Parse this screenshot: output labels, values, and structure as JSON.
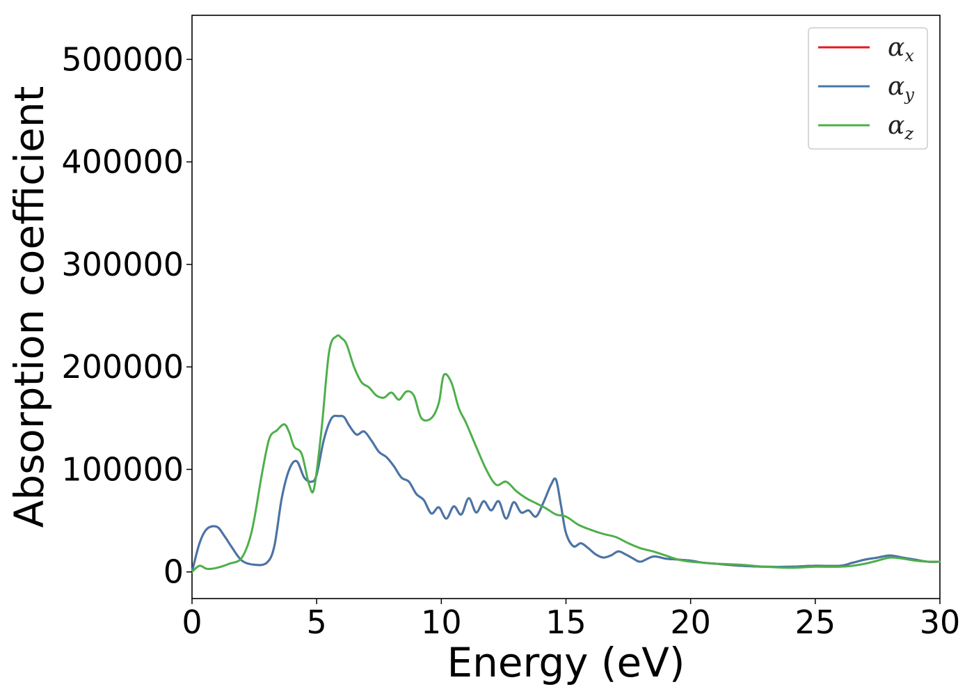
{
  "chart_data": {
    "type": "line",
    "title": "",
    "xlabel": "Energy (eV)",
    "ylabel": "Absorption coefficient",
    "xlim": [
      0,
      30
    ],
    "ylim": [
      -26000,
      543000
    ],
    "xticks": [
      0,
      5,
      10,
      15,
      20,
      25,
      30
    ],
    "yticks": [
      0,
      100000,
      200000,
      300000,
      400000,
      500000
    ],
    "grid": false,
    "legend_position": "top-right",
    "series": [
      {
        "name": "αx",
        "legend_symbol": "α",
        "legend_subscript": "x",
        "color": "#e41a1c",
        "x": [
          0,
          0.3,
          0.6,
          1.0,
          1.3,
          1.6,
          2.0,
          2.5,
          3.0,
          3.3,
          3.6,
          3.9,
          4.2,
          4.5,
          4.8,
          5.0,
          5.3,
          5.6,
          5.9,
          6.1,
          6.3,
          6.6,
          6.9,
          7.2,
          7.5,
          7.8,
          8.1,
          8.4,
          8.7,
          9.0,
          9.3,
          9.6,
          9.9,
          10.2,
          10.5,
          10.8,
          11.1,
          11.4,
          11.7,
          12.0,
          12.3,
          12.6,
          12.9,
          13.2,
          13.5,
          13.8,
          14.1,
          14.4,
          14.6,
          14.8,
          15.0,
          15.3,
          15.6,
          15.9,
          16.2,
          16.5,
          16.8,
          17.1,
          17.4,
          17.7,
          18.0,
          18.5,
          19.0,
          19.5,
          20.0,
          20.5,
          21.0,
          22.0,
          23.0,
          24.0,
          25.0,
          26.0,
          26.5,
          27.0,
          27.5,
          28.0,
          28.5,
          29.0,
          29.5,
          30.0
        ],
        "y": [
          0,
          28000,
          42000,
          44000,
          35000,
          24000,
          11000,
          7000,
          9000,
          25000,
          72000,
          100000,
          108000,
          92000,
          88000,
          95000,
          130000,
          150000,
          152000,
          151000,
          143000,
          134000,
          137000,
          128000,
          117000,
          112000,
          103000,
          92000,
          88000,
          76000,
          70000,
          57000,
          63000,
          52000,
          64000,
          56000,
          72000,
          58000,
          69000,
          60000,
          69000,
          52000,
          68000,
          58000,
          60000,
          54000,
          68000,
          85000,
          90000,
          65000,
          38000,
          25000,
          28000,
          23000,
          17000,
          14000,
          16000,
          20000,
          17000,
          13000,
          10000,
          15000,
          13000,
          12000,
          11000,
          9000,
          8000,
          6000,
          5000,
          5000,
          6000,
          6000,
          9000,
          12000,
          14000,
          16000,
          14000,
          12000,
          10000,
          10000
        ]
      },
      {
        "name": "αy",
        "legend_symbol": "α",
        "legend_subscript": "y",
        "color": "#4477aa",
        "x": [
          0,
          0.3,
          0.6,
          1.0,
          1.3,
          1.6,
          2.0,
          2.5,
          3.0,
          3.3,
          3.6,
          3.9,
          4.2,
          4.5,
          4.8,
          5.0,
          5.3,
          5.6,
          5.9,
          6.1,
          6.3,
          6.6,
          6.9,
          7.2,
          7.5,
          7.8,
          8.1,
          8.4,
          8.7,
          9.0,
          9.3,
          9.6,
          9.9,
          10.2,
          10.5,
          10.8,
          11.1,
          11.4,
          11.7,
          12.0,
          12.3,
          12.6,
          12.9,
          13.2,
          13.5,
          13.8,
          14.1,
          14.4,
          14.6,
          14.8,
          15.0,
          15.3,
          15.6,
          15.9,
          16.2,
          16.5,
          16.8,
          17.1,
          17.4,
          17.7,
          18.0,
          18.5,
          19.0,
          19.5,
          20.0,
          20.5,
          21.0,
          22.0,
          23.0,
          24.0,
          25.0,
          26.0,
          26.5,
          27.0,
          27.5,
          28.0,
          28.5,
          29.0,
          29.5,
          30.0
        ],
        "y": [
          0,
          28000,
          42000,
          44000,
          35000,
          24000,
          11000,
          7000,
          9000,
          25000,
          72000,
          100000,
          108000,
          92000,
          88000,
          95000,
          130000,
          150000,
          152000,
          151000,
          143000,
          134000,
          137000,
          128000,
          117000,
          112000,
          103000,
          92000,
          88000,
          76000,
          70000,
          57000,
          63000,
          52000,
          64000,
          56000,
          72000,
          58000,
          69000,
          60000,
          69000,
          52000,
          68000,
          58000,
          60000,
          54000,
          68000,
          85000,
          90000,
          65000,
          38000,
          25000,
          28000,
          23000,
          17000,
          14000,
          16000,
          20000,
          17000,
          13000,
          10000,
          15000,
          13000,
          12000,
          11000,
          9000,
          8000,
          6000,
          5000,
          5000,
          6000,
          6000,
          9000,
          12000,
          14000,
          16000,
          14000,
          12000,
          10000,
          10000
        ]
      },
      {
        "name": "αz",
        "legend_symbol": "α",
        "legend_subscript": "z",
        "color": "#4daf4a",
        "x": [
          0,
          0.3,
          0.6,
          1.0,
          1.5,
          2.0,
          2.4,
          2.8,
          3.1,
          3.4,
          3.7,
          3.9,
          4.1,
          4.4,
          4.7,
          4.9,
          5.2,
          5.5,
          5.8,
          6.0,
          6.2,
          6.5,
          6.8,
          7.1,
          7.4,
          7.7,
          8.0,
          8.3,
          8.6,
          8.9,
          9.2,
          9.6,
          9.9,
          10.1,
          10.4,
          10.7,
          11.0,
          11.4,
          11.8,
          12.2,
          12.6,
          13.0,
          13.4,
          13.8,
          14.2,
          14.6,
          15.0,
          15.5,
          16.0,
          16.5,
          17.0,
          17.5,
          18.0,
          18.5,
          19.0,
          19.5,
          20.0,
          20.5,
          21.0,
          22.0,
          23.0,
          24.0,
          25.0,
          26.0,
          26.5,
          27.0,
          27.5,
          28.0,
          28.5,
          29.0,
          29.5,
          30.0
        ],
        "y": [
          0,
          6000,
          3000,
          4000,
          8000,
          14000,
          40000,
          95000,
          130000,
          138000,
          144000,
          136000,
          122000,
          115000,
          85000,
          82000,
          140000,
          215000,
          230000,
          228000,
          222000,
          200000,
          185000,
          180000,
          172000,
          170000,
          175000,
          168000,
          176000,
          172000,
          150000,
          150000,
          165000,
          192000,
          185000,
          160000,
          145000,
          122000,
          100000,
          85000,
          88000,
          79000,
          72000,
          67000,
          62000,
          56000,
          54000,
          46000,
          41000,
          37000,
          34000,
          28000,
          23000,
          20000,
          16000,
          12000,
          10000,
          9000,
          8000,
          7000,
          5000,
          4000,
          5000,
          5000,
          6000,
          8000,
          11000,
          14000,
          13000,
          11000,
          10000,
          10000
        ]
      }
    ]
  }
}
